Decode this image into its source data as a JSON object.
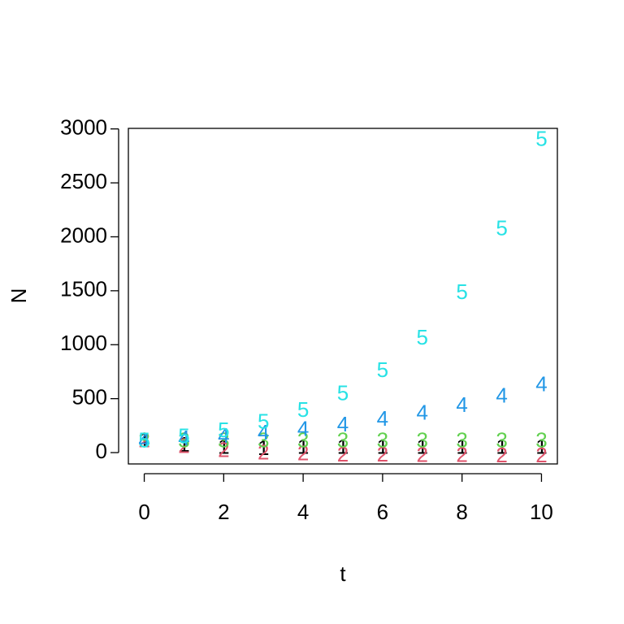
{
  "chart_data": {
    "type": "scatter",
    "xlabel": "t",
    "ylabel": "N",
    "x": [
      0,
      1,
      2,
      3,
      4,
      5,
      6,
      7,
      8,
      9,
      10
    ],
    "series": [
      {
        "pch": "1",
        "color": "#000000",
        "values": [
          100,
          60,
          40,
          30,
          40,
          40,
          40,
          40,
          40,
          40,
          40
        ]
      },
      {
        "pch": "2",
        "color": "#DF536B",
        "values": [
          100,
          50,
          10,
          -10,
          -20,
          -30,
          -30,
          -35,
          -35,
          -40,
          -40
        ]
      },
      {
        "pch": "3",
        "color": "#61D04F",
        "values": [
          100,
          100,
          100,
          100,
          100,
          100,
          100,
          100,
          100,
          100,
          100
        ]
      },
      {
        "pch": "4",
        "color": "#2297E6",
        "values": [
          100,
          120,
          144,
          173,
          207,
          249,
          299,
          358,
          430,
          516,
          619
        ]
      },
      {
        "pch": "5",
        "color": "#28E2E5",
        "values": [
          100,
          140,
          196,
          274,
          384,
          538,
          753,
          1054,
          1476,
          2066,
          2893
        ]
      }
    ],
    "xlim": [
      -0.4,
      10.4
    ],
    "ylim": [
      -105,
      3005
    ],
    "xticks": [
      0,
      2,
      4,
      6,
      8,
      10
    ],
    "yticks": [
      0,
      500,
      1000,
      1500,
      2000,
      2500,
      3000
    ]
  }
}
